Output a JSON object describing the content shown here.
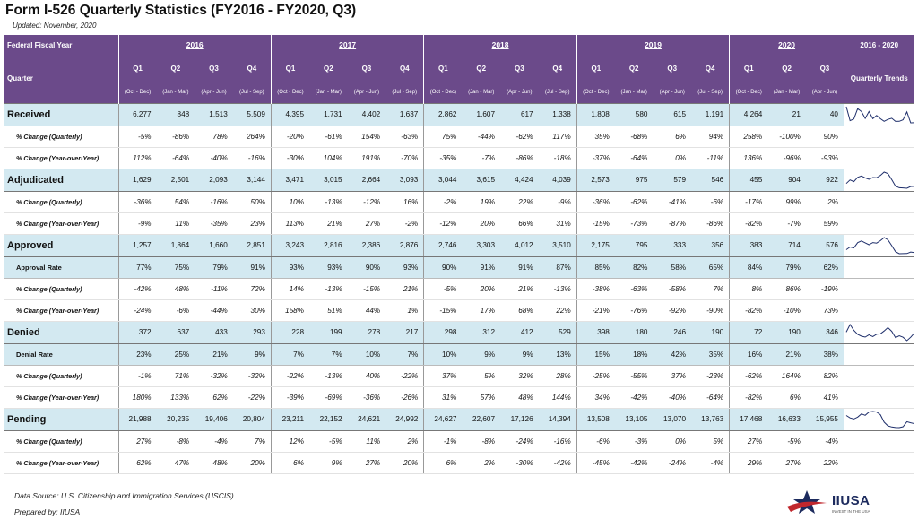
{
  "title": "Form I-526 Quarterly Statistics (FY2016 - FY2020, Q3)",
  "updated": "Updated: November, 2020",
  "header": {
    "fiscal_year_label": "Federal Fiscal Year",
    "quarter_label": "Quarter",
    "years": [
      "2016",
      "2017",
      "2018",
      "2019",
      "2020"
    ],
    "trend_range": "2016 - 2020",
    "trend_label": "Quarterly Trends",
    "quarters": [
      "Q1",
      "Q2",
      "Q3",
      "Q4",
      "Q1",
      "Q2",
      "Q3",
      "Q4",
      "Q1",
      "Q2",
      "Q3",
      "Q4",
      "Q1",
      "Q2",
      "Q3",
      "Q4",
      "Q1",
      "Q2",
      "Q3"
    ],
    "ranges": [
      "(Oct - Dec)",
      "(Jan - Mar)",
      "(Apr - Jun)",
      "(Jul - Sep)",
      "(Oct - Dec)",
      "(Jan - Mar)",
      "(Apr - Jun)",
      "(Jul - Sep)",
      "(Oct - Dec)",
      "(Jan - Mar)",
      "(Apr - Jun)",
      "(Jul - Sep)",
      "(Oct - Dec)",
      "(Jan - Mar)",
      "(Apr - Jun)",
      "(Jul - Sep)",
      "(Oct - Dec)",
      "(Jan - Mar)",
      "(Apr - Jun)"
    ]
  },
  "rows": [
    {
      "type": "main",
      "label": "Received",
      "values": [
        "6,277",
        "848",
        "1,513",
        "5,509",
        "4,395",
        "1,731",
        "4,402",
        "1,637",
        "2,862",
        "1,607",
        "617",
        "1,338",
        "1,808",
        "580",
        "615",
        "1,191",
        "4,264",
        "21",
        "40"
      ],
      "spark": [
        6277,
        848,
        1513,
        5509,
        4395,
        1731,
        4402,
        1637,
        2862,
        1607,
        617,
        1338,
        1808,
        580,
        615,
        1191,
        4264,
        21,
        40
      ]
    },
    {
      "type": "sub",
      "label": "% Change (Quarterly)",
      "values": [
        "-5%",
        "-86%",
        "78%",
        "264%",
        "-20%",
        "-61%",
        "154%",
        "-63%",
        "75%",
        "-44%",
        "-62%",
        "117%",
        "35%",
        "-68%",
        "6%",
        "94%",
        "258%",
        "-100%",
        "90%"
      ]
    },
    {
      "type": "sub",
      "label": "% Change (Year-over-Year)",
      "values": [
        "112%",
        "-64%",
        "-40%",
        "-16%",
        "-30%",
        "104%",
        "191%",
        "-70%",
        "-35%",
        "-7%",
        "-86%",
        "-18%",
        "-37%",
        "-64%",
        "0%",
        "-11%",
        "136%",
        "-96%",
        "-93%"
      ]
    },
    {
      "type": "main",
      "label": "Adjudicated",
      "values": [
        "1,629",
        "2,501",
        "2,093",
        "3,144",
        "3,471",
        "3,015",
        "2,664",
        "3,093",
        "3,044",
        "3,615",
        "4,424",
        "4,039",
        "2,573",
        "975",
        "579",
        "546",
        "455",
        "904",
        "922"
      ],
      "spark": [
        1629,
        2501,
        2093,
        3144,
        3471,
        3015,
        2664,
        3093,
        3044,
        3615,
        4424,
        4039,
        2573,
        975,
        579,
        546,
        455,
        904,
        922
      ]
    },
    {
      "type": "sub",
      "label": "% Change (Quarterly)",
      "values": [
        "-36%",
        "54%",
        "-16%",
        "50%",
        "10%",
        "-13%",
        "-12%",
        "16%",
        "-2%",
        "19%",
        "22%",
        "-9%",
        "-36%",
        "-62%",
        "-41%",
        "-6%",
        "-17%",
        "99%",
        "2%"
      ]
    },
    {
      "type": "sub",
      "label": "% Change (Year-over-Year)",
      "values": [
        "-9%",
        "11%",
        "-35%",
        "23%",
        "113%",
        "21%",
        "27%",
        "-2%",
        "-12%",
        "20%",
        "66%",
        "31%",
        "-15%",
        "-73%",
        "-87%",
        "-86%",
        "-82%",
        "-7%",
        "59%"
      ]
    },
    {
      "type": "main",
      "label": "Approved",
      "values": [
        "1,257",
        "1,864",
        "1,660",
        "2,851",
        "3,243",
        "2,816",
        "2,386",
        "2,876",
        "2,746",
        "3,303",
        "4,012",
        "3,510",
        "2,175",
        "795",
        "333",
        "356",
        "383",
        "714",
        "576"
      ],
      "spark": [
        1257,
        1864,
        1660,
        2851,
        3243,
        2816,
        2386,
        2876,
        2746,
        3303,
        4012,
        3510,
        2175,
        795,
        333,
        356,
        383,
        714,
        576
      ]
    },
    {
      "type": "rate",
      "label": "Approval Rate",
      "values": [
        "77%",
        "75%",
        "79%",
        "91%",
        "93%",
        "93%",
        "90%",
        "93%",
        "90%",
        "91%",
        "91%",
        "87%",
        "85%",
        "82%",
        "58%",
        "65%",
        "84%",
        "79%",
        "62%"
      ]
    },
    {
      "type": "sub",
      "label": "% Change (Quarterly)",
      "values": [
        "-42%",
        "48%",
        "-11%",
        "72%",
        "14%",
        "-13%",
        "-15%",
        "21%",
        "-5%",
        "20%",
        "21%",
        "-13%",
        "-38%",
        "-63%",
        "-58%",
        "7%",
        "8%",
        "86%",
        "-19%"
      ]
    },
    {
      "type": "sub",
      "label": "% Change (Year-over-Year)",
      "values": [
        "-24%",
        "-6%",
        "-44%",
        "30%",
        "158%",
        "51%",
        "44%",
        "1%",
        "-15%",
        "17%",
        "68%",
        "22%",
        "-21%",
        "-76%",
        "-92%",
        "-90%",
        "-82%",
        "-10%",
        "73%"
      ]
    },
    {
      "type": "main",
      "label": "Denied",
      "values": [
        "372",
        "637",
        "433",
        "293",
        "228",
        "199",
        "278",
        "217",
        "298",
        "312",
        "412",
        "529",
        "398",
        "180",
        "246",
        "190",
        "72",
        "190",
        "346"
      ],
      "spark": [
        372,
        637,
        433,
        293,
        228,
        199,
        278,
        217,
        298,
        312,
        412,
        529,
        398,
        180,
        246,
        190,
        72,
        190,
        346
      ]
    },
    {
      "type": "rate",
      "label": "Denial Rate",
      "values": [
        "23%",
        "25%",
        "21%",
        "9%",
        "7%",
        "7%",
        "10%",
        "7%",
        "10%",
        "9%",
        "9%",
        "13%",
        "15%",
        "18%",
        "42%",
        "35%",
        "16%",
        "21%",
        "38%"
      ]
    },
    {
      "type": "sub",
      "label": "% Change (Quarterly)",
      "values": [
        "-1%",
        "71%",
        "-32%",
        "-32%",
        "-22%",
        "-13%",
        "40%",
        "-22%",
        "37%",
        "5%",
        "32%",
        "28%",
        "-25%",
        "-55%",
        "37%",
        "-23%",
        "-62%",
        "164%",
        "82%"
      ]
    },
    {
      "type": "sub",
      "label": "% Change (Year-over-Year)",
      "values": [
        "180%",
        "133%",
        "62%",
        "-22%",
        "-39%",
        "-69%",
        "-36%",
        "-26%",
        "31%",
        "57%",
        "48%",
        "144%",
        "34%",
        "-42%",
        "-40%",
        "-64%",
        "-82%",
        "6%",
        "41%"
      ]
    },
    {
      "type": "main",
      "label": "Pending",
      "values": [
        "21,988",
        "20,235",
        "19,406",
        "20,804",
        "23,211",
        "22,152",
        "24,621",
        "24,992",
        "24,627",
        "22,607",
        "17,126",
        "14,394",
        "13,508",
        "13,105",
        "13,070",
        "13,763",
        "17,468",
        "16,633",
        "15,955"
      ],
      "spark": [
        21988,
        20235,
        19406,
        20804,
        23211,
        22152,
        24621,
        24992,
        24627,
        22607,
        17126,
        14394,
        13508,
        13105,
        13070,
        13763,
        17468,
        16633,
        15955
      ]
    },
    {
      "type": "sub",
      "label": "% Change (Quarterly)",
      "values": [
        "27%",
        "-8%",
        "-4%",
        "7%",
        "12%",
        "-5%",
        "11%",
        "2%",
        "-1%",
        "-8%",
        "-24%",
        "-16%",
        "-6%",
        "-3%",
        "0%",
        "5%",
        "27%",
        "-5%",
        "-4%"
      ]
    },
    {
      "type": "sub",
      "label": "% Change (Year-over-Year)",
      "values": [
        "62%",
        "47%",
        "48%",
        "20%",
        "6%",
        "9%",
        "27%",
        "20%",
        "6%",
        "2%",
        "-30%",
        "-42%",
        "-45%",
        "-42%",
        "-24%",
        "-4%",
        "29%",
        "27%",
        "22%"
      ]
    }
  ],
  "footer": {
    "source": "Data Source: U.S. Citizenship and Immigration Services (USCIS).",
    "prepared": "Prepared by: IIUSA"
  },
  "logo": {
    "text": "IIUSA",
    "tagline": "INVEST IN THE USA",
    "colors": {
      "navy": "#1d2b5e",
      "red": "#c0272d"
    }
  },
  "colors": {
    "header_bg": "#6b4a8a",
    "row_highlight": "#d3e9f1",
    "sparkline": "#1f2f6b"
  }
}
